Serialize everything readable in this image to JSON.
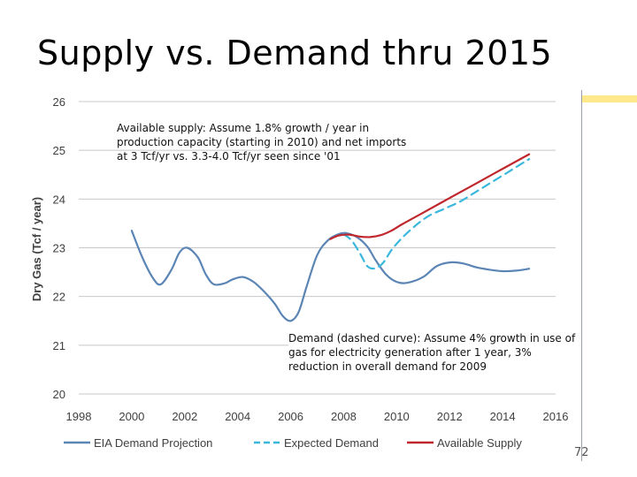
{
  "slide": {
    "title": "Supply vs. Demand thru 2015",
    "page_number": "72"
  },
  "colors": {
    "eia": "#5b85b5",
    "expected": "#39b7dd",
    "available": "#c0272d",
    "grid": "#c8c8c8",
    "axis_text": "#404040"
  },
  "annotations": {
    "supply": [
      "Available supply: Assume 1.8% growth / year in",
      "production capacity (starting in 2010) and net imports",
      "at 3 Tcf/yr vs. 3.3-4.0 Tcf/yr seen since '01"
    ],
    "demand": [
      "Demand (dashed curve): Assume 4% growth in use of",
      "gas for electricity generation after 1 year, 3%",
      "reduction in overall demand for 2009"
    ]
  },
  "chart_data": {
    "type": "line",
    "title": "",
    "xlabel": "",
    "ylabel": "Dry Gas (Tcf / year)",
    "xlim": [
      1998,
      2016
    ],
    "ylim": [
      20,
      26
    ],
    "xticks": [
      "1998",
      "2000",
      "2002",
      "2004",
      "2006",
      "2008",
      "2010",
      "2012",
      "2014",
      "2016"
    ],
    "yticks": [
      "20",
      "21",
      "22",
      "23",
      "24",
      "25",
      "26"
    ],
    "grid": true,
    "legend_position": "bottom",
    "series": [
      {
        "name": "EIA Demand Projection",
        "style": "solid",
        "color_key": "eia",
        "x": [
          2000,
          2000.4,
          2000.8,
          2001.1,
          2001.5,
          2001.8,
          2002.1,
          2002.5,
          2002.8,
          2003.1,
          2003.5,
          2003.8,
          2004.2,
          2004.6,
          2005.0,
          2005.4,
          2005.7,
          2006.0,
          2006.3,
          2006.6,
          2007.0,
          2007.4,
          2007.8,
          2008.1,
          2008.5,
          2008.9,
          2009.2,
          2009.6,
          2010.0,
          2010.4,
          2011.0,
          2011.5,
          2012.0,
          2012.5,
          2013.0,
          2013.5,
          2014.0,
          2014.5,
          2015.0
        ],
        "values": [
          23.35,
          22.8,
          22.38,
          22.25,
          22.55,
          22.9,
          23.0,
          22.8,
          22.45,
          22.25,
          22.27,
          22.35,
          22.4,
          22.3,
          22.1,
          21.85,
          21.6,
          21.5,
          21.68,
          22.2,
          22.85,
          23.15,
          23.28,
          23.3,
          23.22,
          23.02,
          22.75,
          22.45,
          22.3,
          22.28,
          22.4,
          22.62,
          22.7,
          22.68,
          22.6,
          22.55,
          22.52,
          22.53,
          22.57
        ]
      },
      {
        "name": "Expected Demand",
        "style": "dashed",
        "color_key": "expected",
        "x": [
          2008.0,
          2008.3,
          2008.6,
          2008.9,
          2009.2,
          2009.5,
          2009.8,
          2010.2,
          2010.7,
          2011.2,
          2011.8,
          2012.4,
          2013.0,
          2013.6,
          2014.2,
          2014.7,
          2015.0
        ],
        "values": [
          23.28,
          23.15,
          22.9,
          22.62,
          22.58,
          22.7,
          22.95,
          23.2,
          23.45,
          23.65,
          23.8,
          23.95,
          24.15,
          24.35,
          24.55,
          24.72,
          24.82
        ]
      },
      {
        "name": "Available Supply",
        "style": "solid",
        "color_key": "available",
        "x": [
          2007.5,
          2007.8,
          2008.2,
          2008.6,
          2009.0,
          2009.4,
          2009.8,
          2010.2,
          2011.0,
          2012.0,
          2013.0,
          2014.0,
          2015.0
        ],
        "values": [
          23.18,
          23.25,
          23.27,
          23.23,
          23.22,
          23.26,
          23.35,
          23.48,
          23.72,
          24.02,
          24.32,
          24.62,
          24.92
        ]
      }
    ]
  }
}
